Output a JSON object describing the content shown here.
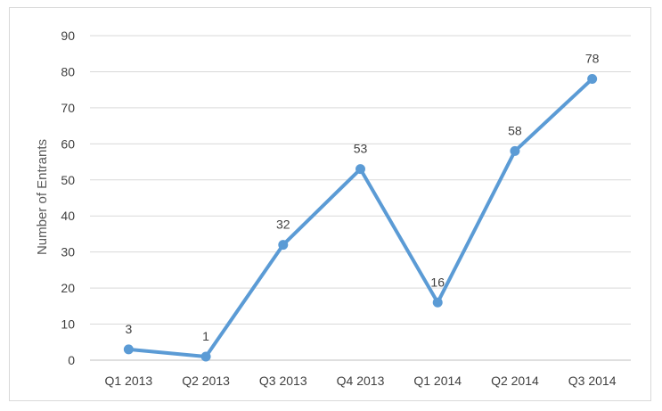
{
  "chart_data": {
    "type": "line",
    "title": "",
    "xlabel": "",
    "ylabel": "Number of Entrants",
    "categories": [
      "Q1 2013",
      "Q2 2013",
      "Q3 2013",
      "Q4 2013",
      "Q1 2014",
      "Q2 2014",
      "Q3 2014"
    ],
    "series": [
      {
        "values": [
          3,
          1,
          32,
          53,
          16,
          58,
          78
        ]
      }
    ],
    "data_labels": [
      "3",
      "1",
      "32",
      "53",
      "16",
      "58",
      "78"
    ],
    "ylim": [
      0,
      90
    ],
    "yticks": [
      "0",
      "10",
      "20",
      "30",
      "40",
      "50",
      "60",
      "70",
      "80",
      "90"
    ],
    "grid": true,
    "legend": "none",
    "colors": {
      "line": "#5b9bd5",
      "grid": "#d9d9d9",
      "text": "#404040"
    }
  }
}
